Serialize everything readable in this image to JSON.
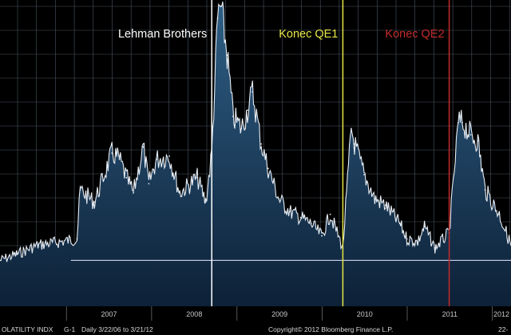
{
  "chart_data": {
    "type": "area",
    "title": "",
    "xlabel": "",
    "ylabel": "",
    "grid": true,
    "style": {
      "background": "#000000",
      "grid_color": "#4a5560",
      "line_color": "#e8eef5",
      "fill_top": "#2f5f86",
      "fill_bottom": "#0d2137"
    },
    "x_ticks": [
      "2007",
      "2008",
      "2009",
      "2010",
      "2011",
      "2012"
    ],
    "y_range_normalized": [
      0,
      1
    ],
    "series": [
      {
        "x": [
          "2006-03-22",
          "2006-06-01",
          "2006-09-01",
          "2006-12-01",
          "2007-02-15",
          "2007-03-01",
          "2007-05-01",
          "2007-07-15",
          "2007-08-16",
          "2007-09-15",
          "2007-10-15",
          "2007-11-26",
          "2007-12-20",
          "2008-01-22",
          "2008-03-17",
          "2008-05-01",
          "2008-07-15",
          "2008-08-20",
          "2008-09-15",
          "2008-10-10",
          "2008-10-24",
          "2008-11-20",
          "2008-12-15",
          "2009-01-20",
          "2009-02-15",
          "2009-03-09",
          "2009-04-15",
          "2009-05-15",
          "2009-06-30",
          "2009-08-15",
          "2009-10-01",
          "2009-11-15",
          "2009-12-31",
          "2010-02-05",
          "2010-03-31",
          "2010-05-06",
          "2010-05-20",
          "2010-06-30",
          "2010-08-15",
          "2010-09-30",
          "2010-11-30",
          "2010-12-31",
          "2011-02-15",
          "2011-03-16",
          "2011-04-30",
          "2011-06-30",
          "2011-08-08",
          "2011-08-25",
          "2011-09-30",
          "2011-10-31",
          "2011-12-01",
          "2012-01-31",
          "2012-03-21"
        ],
        "values": [
          0.15,
          0.17,
          0.2,
          0.21,
          0.22,
          0.38,
          0.34,
          0.5,
          0.48,
          0.42,
          0.37,
          0.52,
          0.4,
          0.48,
          0.49,
          0.37,
          0.42,
          0.34,
          0.5,
          0.94,
          0.98,
          0.82,
          0.62,
          0.58,
          0.64,
          0.7,
          0.53,
          0.45,
          0.35,
          0.31,
          0.29,
          0.27,
          0.23,
          0.3,
          0.19,
          0.58,
          0.53,
          0.43,
          0.35,
          0.33,
          0.27,
          0.22,
          0.21,
          0.26,
          0.19,
          0.24,
          0.6,
          0.6,
          0.56,
          0.54,
          0.38,
          0.3,
          0.2
        ]
      }
    ],
    "reference_line": {
      "y": 0.15,
      "color": "#e6e6ff"
    },
    "annotations": [
      {
        "text": "Lehman Brothers",
        "date": "2008-09-15",
        "color": "#ffffff"
      },
      {
        "text": "Konec QE1",
        "date": "2010-03-31",
        "color": "#e6e645"
      },
      {
        "text": "Konec QE2",
        "date": "2011-06-30",
        "color": "#c42b2b"
      }
    ]
  },
  "footer": {
    "index_name": "OLATILITY INDX",
    "chart_code": "G-1",
    "period": "Daily  3/22/06 to 3/21/12",
    "copyright": "Copyright© 2012 Bloomberg Finance L.P.",
    "corner": "22-"
  }
}
